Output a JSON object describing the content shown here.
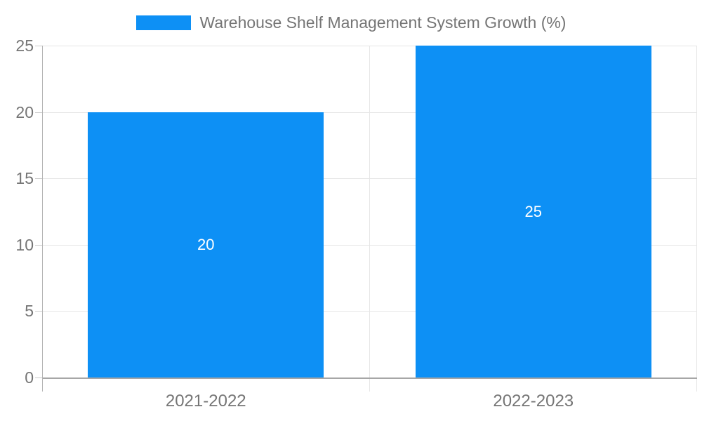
{
  "legend": {
    "label": "Warehouse Shelf Management System Growth (%)"
  },
  "chart_data": {
    "type": "bar",
    "title": "Warehouse Shelf Management System Growth (%)",
    "categories": [
      "2021-2022",
      "2022-2023"
    ],
    "values": [
      20,
      25
    ],
    "bar_labels": [
      "20",
      "25"
    ],
    "series_name": "Warehouse Shelf Management System Growth (%)",
    "xlabel": "",
    "ylabel": "",
    "ylim": [
      0,
      25
    ],
    "yticks": [
      0,
      5,
      10,
      15,
      20,
      25
    ],
    "grid": true,
    "legend_position": "top",
    "colors": {
      "bar": "#0d90f5",
      "bar_label": "#ffffff",
      "axis_text": "#757575",
      "gridline": "#e6e6e6",
      "y_axis_line": "#b3b3b3",
      "x_axis_line": "#a6a6a6",
      "tick": "#cccccc",
      "background": "#ffffff"
    }
  }
}
